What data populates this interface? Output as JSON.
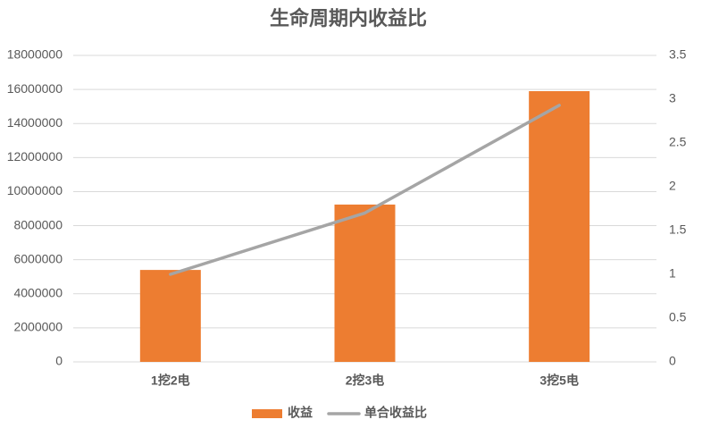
{
  "chart_data": {
    "type": "bar",
    "title": "生命周期内收益比",
    "categories": [
      "1挖2电",
      "2挖3电",
      "3挖5电"
    ],
    "series": [
      {
        "name": "收益",
        "type": "bar",
        "color": "#ed7d31",
        "values": [
          5400000,
          9240000,
          15900000
        ]
      },
      {
        "name": "单合收益比",
        "type": "line",
        "axis": "y2",
        "color": "#a5a5a5",
        "values": [
          1,
          1.7,
          2.93
        ]
      }
    ],
    "ylim": [
      0,
      18000000
    ],
    "yticks": [
      0,
      2000000,
      4000000,
      6000000,
      8000000,
      10000000,
      12000000,
      14000000,
      16000000,
      18000000
    ],
    "y2lim": [
      0,
      3.5
    ],
    "y2ticks": [
      0,
      0.5,
      1,
      1.5,
      2,
      2.5,
      3,
      3.5
    ],
    "grid": true,
    "legend": "bottom"
  }
}
